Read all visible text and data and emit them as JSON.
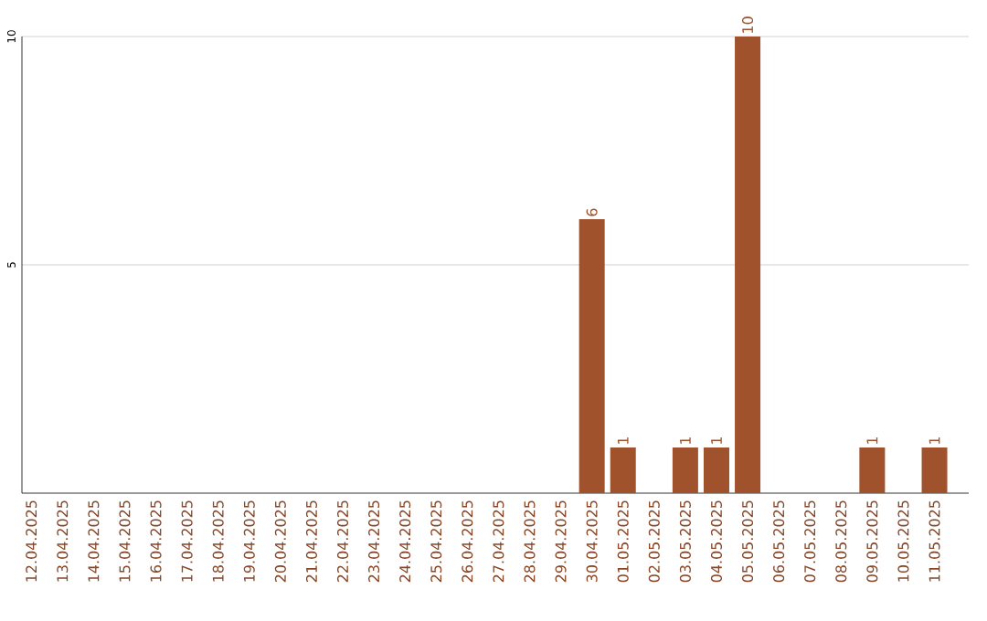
{
  "chart_data": {
    "type": "bar",
    "categories": [
      "12.04.2025",
      "13.04.2025",
      "14.04.2025",
      "15.04.2025",
      "16.04.2025",
      "17.04.2025",
      "18.04.2025",
      "19.04.2025",
      "20.04.2025",
      "21.04.2025",
      "22.04.2025",
      "23.04.2025",
      "24.04.2025",
      "25.04.2025",
      "26.04.2025",
      "27.04.2025",
      "28.04.2025",
      "29.04.2025",
      "30.04.2025",
      "01.05.2025",
      "02.05.2025",
      "03.05.2025",
      "04.05.2025",
      "05.05.2025",
      "06.05.2025",
      "07.05.2025",
      "08.05.2025",
      "09.05.2025",
      "10.05.2025",
      "11.05.2025"
    ],
    "values": [
      0,
      0,
      0,
      0,
      0,
      0,
      0,
      0,
      0,
      0,
      0,
      0,
      0,
      0,
      0,
      0,
      0,
      0,
      6,
      1,
      0,
      1,
      1,
      10,
      0,
      0,
      0,
      1,
      0,
      1
    ],
    "value_labels": [
      null,
      null,
      null,
      null,
      null,
      null,
      null,
      null,
      null,
      null,
      null,
      null,
      null,
      null,
      null,
      null,
      null,
      null,
      "6",
      "1",
      null,
      "1",
      "1",
      "10",
      null,
      null,
      null,
      "1",
      null,
      "1"
    ],
    "color": "#a0522d",
    "ylim": [
      0,
      10
    ],
    "yticks": [
      5,
      10
    ],
    "grid": "y"
  }
}
